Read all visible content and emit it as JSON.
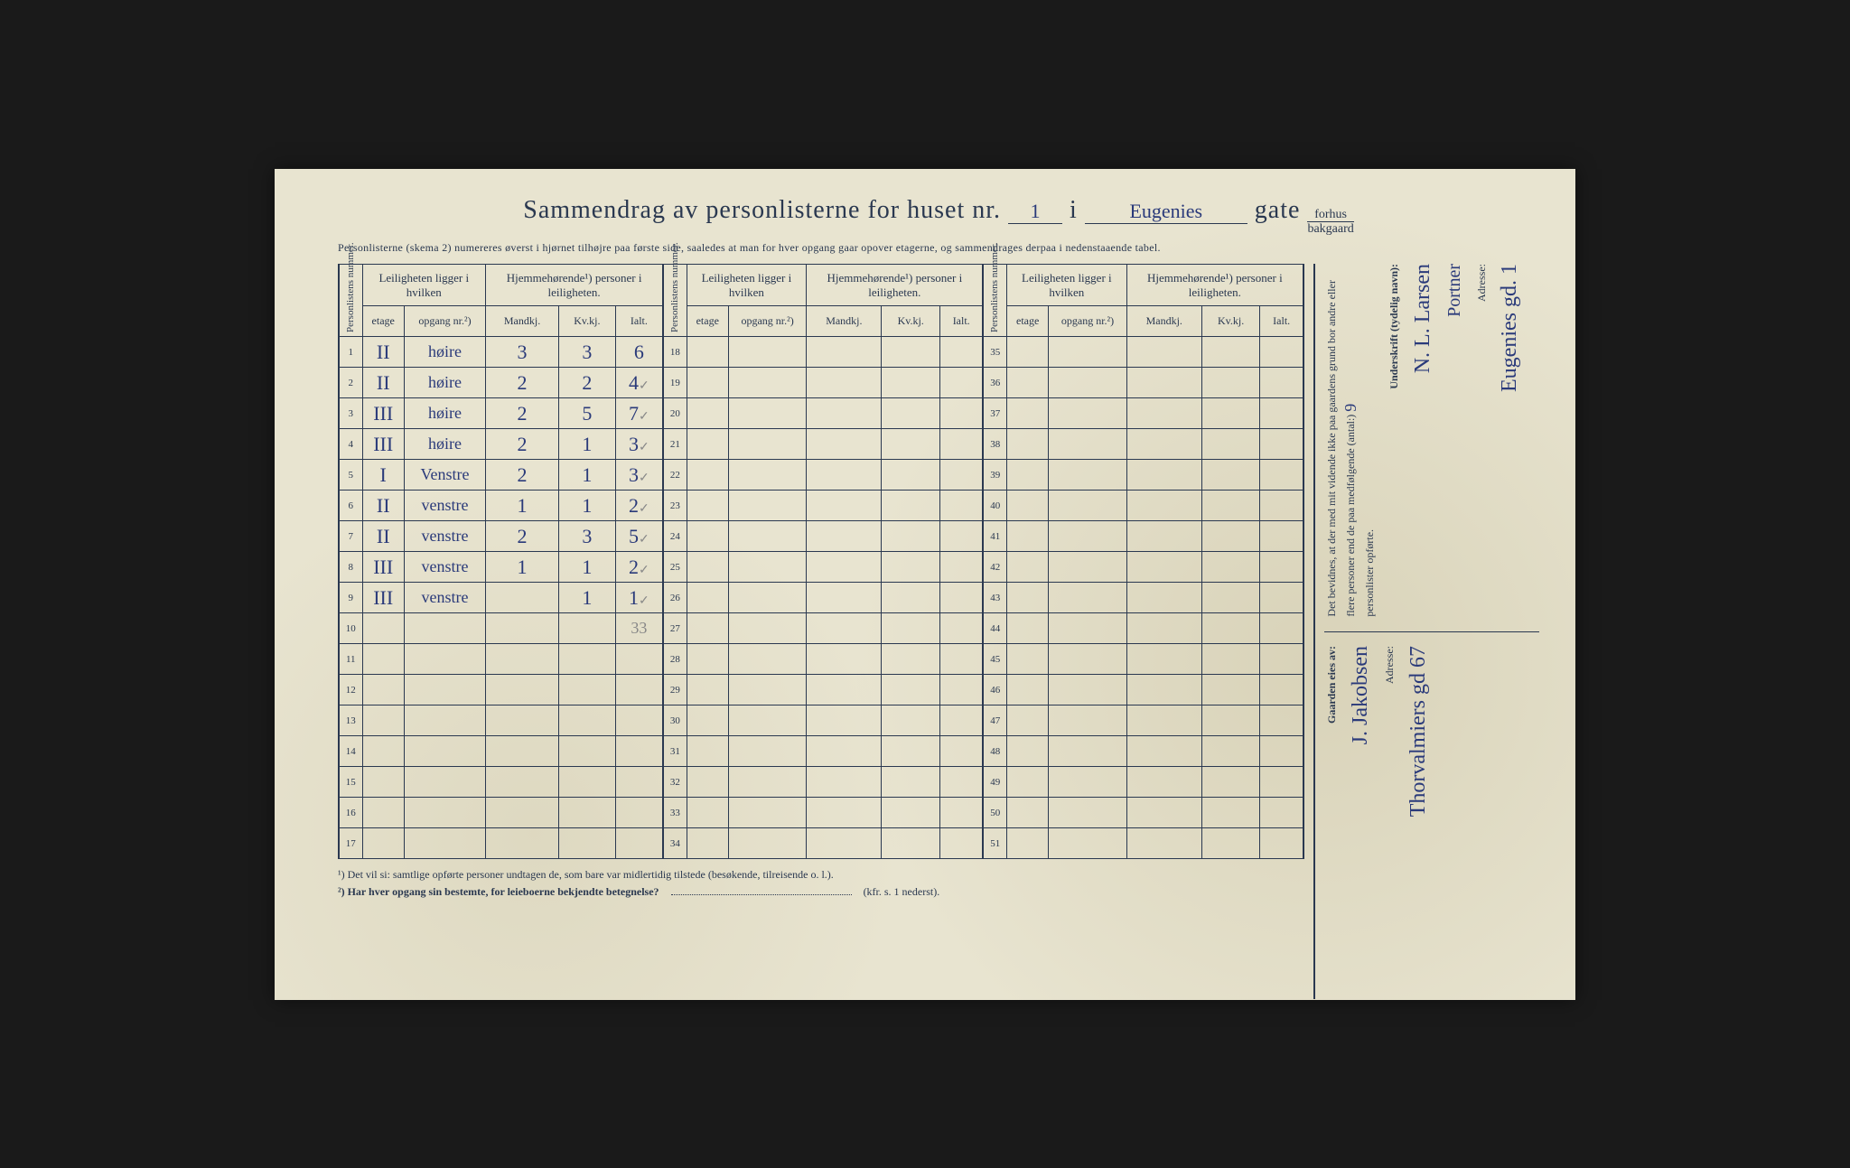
{
  "header": {
    "title_prefix": "Sammendrag av personlisterne for huset nr.",
    "house_nr": "1",
    "i": "i",
    "street": "Eugenies",
    "gate": "gate",
    "fraction_top": "forhus",
    "fraction_bottom": "bakgaard"
  },
  "subheader": "Personlisterne (skema 2) numereres øverst i hjørnet tilhøjre paa første side, saaledes at man for hver opgang gaar opover etagerne, og sammendrages derpaa i nedenstaaende tabel.",
  "colheads": {
    "personlistens": "Personlistens nummer.",
    "leiligheten": "Leiligheten ligger i hvilken",
    "hjemme": "Hjemmehørende¹) personer i leiligheten.",
    "etage": "etage",
    "opgang": "opgang nr.²)",
    "mandkj": "Mandkj.",
    "kvkj": "Kv.kj.",
    "ialt": "Ialt."
  },
  "rows1": [
    {
      "n": "1",
      "etage": "II",
      "opg": "høire",
      "m": "3",
      "k": "3",
      "i": "6",
      "tick": ""
    },
    {
      "n": "2",
      "etage": "II",
      "opg": "høire",
      "m": "2",
      "k": "2",
      "i": "4",
      "tick": "✓"
    },
    {
      "n": "3",
      "etage": "III",
      "opg": "høire",
      "m": "2",
      "k": "5",
      "i": "7",
      "tick": "✓"
    },
    {
      "n": "4",
      "etage": "III",
      "opg": "høire",
      "m": "2",
      "k": "1",
      "i": "3",
      "tick": "✓"
    },
    {
      "n": "5",
      "etage": "I",
      "opg": "Venstre",
      "m": "2",
      "k": "1",
      "i": "3",
      "tick": "✓"
    },
    {
      "n": "6",
      "etage": "II",
      "opg": "venstre",
      "m": "1",
      "k": "1",
      "i": "2",
      "tick": "✓"
    },
    {
      "n": "7",
      "etage": "II",
      "opg": "venstre",
      "m": "2",
      "k": "3",
      "i": "5",
      "tick": "✓"
    },
    {
      "n": "8",
      "etage": "III",
      "opg": "venstre",
      "m": "1",
      "k": "1",
      "i": "2",
      "tick": "✓"
    },
    {
      "n": "9",
      "etage": "III",
      "opg": "venstre",
      "m": "",
      "k": "1",
      "i": "1",
      "tick": "✓"
    },
    {
      "n": "10",
      "etage": "",
      "opg": "",
      "m": "",
      "k": "",
      "i": "",
      "tick": ""
    },
    {
      "n": "11",
      "etage": "",
      "opg": "",
      "m": "",
      "k": "",
      "i": "",
      "tick": ""
    },
    {
      "n": "12",
      "etage": "",
      "opg": "",
      "m": "",
      "k": "",
      "i": "",
      "tick": ""
    },
    {
      "n": "13",
      "etage": "",
      "opg": "",
      "m": "",
      "k": "",
      "i": "",
      "tick": ""
    },
    {
      "n": "14",
      "etage": "",
      "opg": "",
      "m": "",
      "k": "",
      "i": "",
      "tick": ""
    },
    {
      "n": "15",
      "etage": "",
      "opg": "",
      "m": "",
      "k": "",
      "i": "",
      "tick": ""
    },
    {
      "n": "16",
      "etage": "",
      "opg": "",
      "m": "",
      "k": "",
      "i": "",
      "tick": ""
    },
    {
      "n": "17",
      "etage": "",
      "opg": "",
      "m": "",
      "k": "",
      "i": "",
      "tick": ""
    }
  ],
  "sum_row10": "33",
  "nums2": [
    "18",
    "19",
    "20",
    "21",
    "22",
    "23",
    "24",
    "25",
    "26",
    "27",
    "28",
    "29",
    "30",
    "31",
    "32",
    "33",
    "34"
  ],
  "nums3": [
    "35",
    "36",
    "37",
    "38",
    "39",
    "40",
    "41",
    "42",
    "43",
    "44",
    "45",
    "46",
    "47",
    "48",
    "49",
    "50",
    "51"
  ],
  "footnotes": {
    "f1": "¹) Det vil si: samtlige opførte personer undtagen de, som bare var midlertidig tilstede (besøkende, tilreisende o. l.).",
    "f2": "²) Har hver opgang sin bestemte, for leieboerne bekjendte betegnelse?",
    "f2_suffix": "(kfr. s. 1 nederst)."
  },
  "rightside": {
    "top_printed1": "Det bevidnes, at der med mit vidende ikke paa gaardens grund bor andre eller flere personer end de paa medfølgende (antal:)",
    "top_count": "9",
    "top_printed2": "personlister opførte.",
    "underskrift_label": "Underskrift (tydelig navn):",
    "underskrift_value": "N. L. Larsen",
    "underskrift_role": "Portner",
    "adresse_label_top": "Adresse:",
    "adresse_value_top": "Eugenies gd. 1",
    "gaarden_label": "Gaarden eies av:",
    "gaarden_value": "J. Jakobsen",
    "adresse_label_bot": "Adresse:",
    "adresse_value_bot": "Thorvalmiers gd 67"
  }
}
